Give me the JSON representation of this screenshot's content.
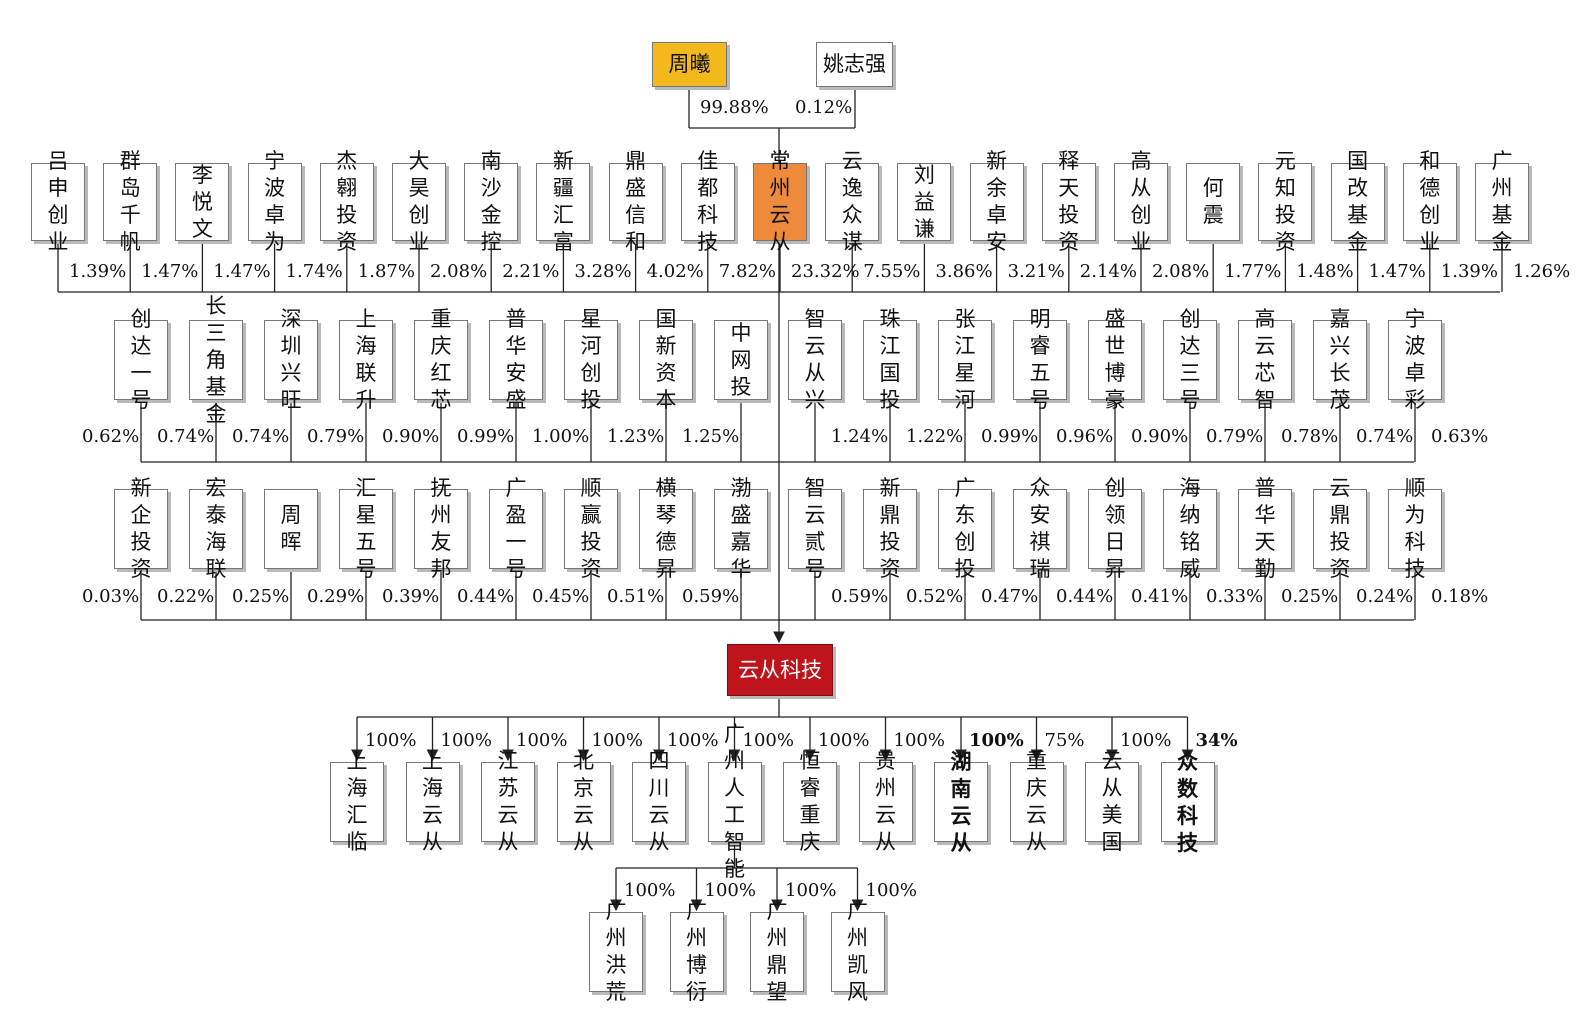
{
  "top": {
    "owners": [
      {
        "name": "周曦",
        "pct": "99.88%",
        "highlight": "gold"
      },
      {
        "name": "姚志强",
        "pct": "0.12%"
      }
    ],
    "holding": {
      "name": "常州云从",
      "pct": "23.32%",
      "highlight": "orange"
    }
  },
  "row1": [
    {
      "name": "吕申创业",
      "pct": "1.39%"
    },
    {
      "name": "群岛千帆",
      "pct": "1.47%"
    },
    {
      "name": "李悦文",
      "pct": "1.47%"
    },
    {
      "name": "宁波卓为",
      "pct": "1.74%"
    },
    {
      "name": "杰翱投资",
      "pct": "1.87%"
    },
    {
      "name": "大昊创业",
      "pct": "2.08%"
    },
    {
      "name": "南沙金控",
      "pct": "2.21%"
    },
    {
      "name": "新疆汇富",
      "pct": "3.28%"
    },
    {
      "name": "鼎盛信和",
      "pct": "4.02%"
    },
    {
      "name": "佳都科技",
      "pct": "7.82%"
    },
    {
      "name": "常州云从",
      "pct": "23.32%"
    },
    {
      "name": "云逸众谋",
      "pct": "7.55%"
    },
    {
      "name": "刘益谦",
      "pct": "3.86%"
    },
    {
      "name": "新余卓安",
      "pct": "3.21%"
    },
    {
      "name": "释天投资",
      "pct": "2.14%"
    },
    {
      "name": "高从创业",
      "pct": "2.08%"
    },
    {
      "name": "何震",
      "pct": "1.77%"
    },
    {
      "name": "元知投资",
      "pct": "1.48%"
    },
    {
      "name": "国改基金",
      "pct": "1.47%"
    },
    {
      "name": "和德创业",
      "pct": "1.39%"
    },
    {
      "name": "广州基金",
      "pct": "1.26%"
    }
  ],
  "row2": [
    {
      "name": "创达一号",
      "pct": "0.62%"
    },
    {
      "name": "长三角基金",
      "pct": "0.74%"
    },
    {
      "name": "深圳兴旺",
      "pct": "0.74%"
    },
    {
      "name": "上海联升",
      "pct": "0.79%"
    },
    {
      "name": "重庆红芯",
      "pct": "0.90%"
    },
    {
      "name": "普华安盛",
      "pct": "0.99%"
    },
    {
      "name": "星河创投",
      "pct": "1.00%"
    },
    {
      "name": "国新资本",
      "pct": "1.23%"
    },
    {
      "name": "中网投",
      "pct": "1.25%"
    },
    {
      "name": "智云从兴",
      "pct": "1.24%"
    },
    {
      "name": "珠江国投",
      "pct": "1.22%"
    },
    {
      "name": "张江星河",
      "pct": "0.99%"
    },
    {
      "name": "明睿五号",
      "pct": "0.96%"
    },
    {
      "name": "盛世博豪",
      "pct": "0.90%"
    },
    {
      "name": "创达三号",
      "pct": "0.79%"
    },
    {
      "name": "高云芯智",
      "pct": "0.78%"
    },
    {
      "name": "嘉兴长茂",
      "pct": "0.74%"
    },
    {
      "name": "宁波卓彩",
      "pct": "0.63%"
    }
  ],
  "row3": [
    {
      "name": "新企投资",
      "pct": "0.03%"
    },
    {
      "name": "宏泰海联",
      "pct": "0.22%"
    },
    {
      "name": "周晖",
      "pct": "0.25%"
    },
    {
      "name": "汇星五号",
      "pct": "0.29%"
    },
    {
      "name": "抚州友邦",
      "pct": "0.39%"
    },
    {
      "name": "广盈一号",
      "pct": "0.44%"
    },
    {
      "name": "顺赢投资",
      "pct": "0.45%"
    },
    {
      "name": "横琴德昇",
      "pct": "0.51%"
    },
    {
      "name": "渤盛嘉华",
      "pct": "0.59%"
    },
    {
      "name": "智云贰号",
      "pct": "0.59%"
    },
    {
      "name": "新鼎投资",
      "pct": "0.52%"
    },
    {
      "name": "广东创投",
      "pct": "0.47%"
    },
    {
      "name": "众安祺瑞",
      "pct": "0.44%"
    },
    {
      "name": "创领日昇",
      "pct": "0.41%"
    },
    {
      "name": "海纳铭威",
      "pct": "0.33%"
    },
    {
      "name": "普华天勤",
      "pct": "0.25%"
    },
    {
      "name": "云鼎投资",
      "pct": "0.24%"
    },
    {
      "name": "顺为科技",
      "pct": "0.18%"
    }
  ],
  "company": {
    "name": "云从科技",
    "highlight": "red"
  },
  "subsidiaries": [
    {
      "name": "上海汇临",
      "pct": "100%"
    },
    {
      "name": "上海云从",
      "pct": "100%"
    },
    {
      "name": "江苏云从",
      "pct": "100%"
    },
    {
      "name": "北京云从",
      "pct": "100%"
    },
    {
      "name": "四川云从",
      "pct": "100%"
    },
    {
      "name": "广州人工智能",
      "pct": "100%"
    },
    {
      "name": "恒睿重庆",
      "pct": "100%"
    },
    {
      "name": "贵州云从",
      "pct": "100%"
    },
    {
      "name": "湖南云从",
      "pct": "100%",
      "bold": true
    },
    {
      "name": "重庆云从",
      "pct": "75%"
    },
    {
      "name": "云从美国",
      "pct": "100%"
    },
    {
      "name": "众数科技",
      "pct": "34%",
      "bold": true
    }
  ],
  "sub_subsidiaries": [
    {
      "name": "广州洪荒",
      "pct": "100%"
    },
    {
      "name": "广州博衍",
      "pct": "100%"
    },
    {
      "name": "广州鼎望",
      "pct": "100%"
    },
    {
      "name": "广州凯风",
      "pct": "100%"
    }
  ],
  "colors": {
    "gold": "#f2b81c",
    "orange": "#ee8a3c",
    "red": "#c0141c",
    "line": "#222222"
  }
}
